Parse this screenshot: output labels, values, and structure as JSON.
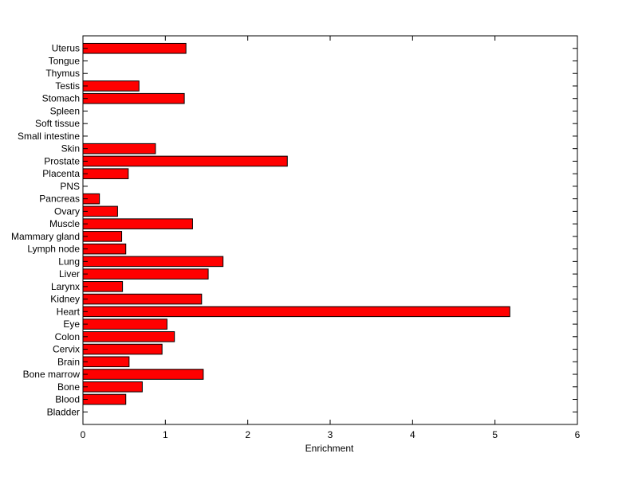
{
  "chart_data": {
    "type": "bar",
    "orientation": "horizontal",
    "xlabel": "Enrichment",
    "ylabel": "",
    "title": "",
    "xlim": [
      0,
      6
    ],
    "xticks": [
      0,
      1,
      2,
      3,
      4,
      5,
      6
    ],
    "grid": false,
    "bar_color": "#ff0000",
    "categories": [
      "Bladder",
      "Blood",
      "Bone",
      "Bone marrow",
      "Brain",
      "Cervix",
      "Colon",
      "Eye",
      "Heart",
      "Kidney",
      "Larynx",
      "Liver",
      "Lung",
      "Lymph node",
      "Mammary gland",
      "Muscle",
      "Ovary",
      "Pancreas",
      "PNS",
      "Placenta",
      "Prostate",
      "Skin",
      "Small intestine",
      "Soft tissue",
      "Spleen",
      "Stomach",
      "Testis",
      "Thymus",
      "Tongue",
      "Uterus"
    ],
    "values": [
      0,
      0.52,
      0.72,
      1.46,
      0.56,
      0.96,
      1.11,
      1.02,
      5.18,
      1.44,
      0.48,
      1.52,
      1.7,
      0.52,
      0.47,
      1.33,
      0.42,
      0.2,
      0,
      0.55,
      2.48,
      0.88,
      0,
      0,
      0,
      1.23,
      0.68,
      0,
      0,
      1.25
    ]
  }
}
